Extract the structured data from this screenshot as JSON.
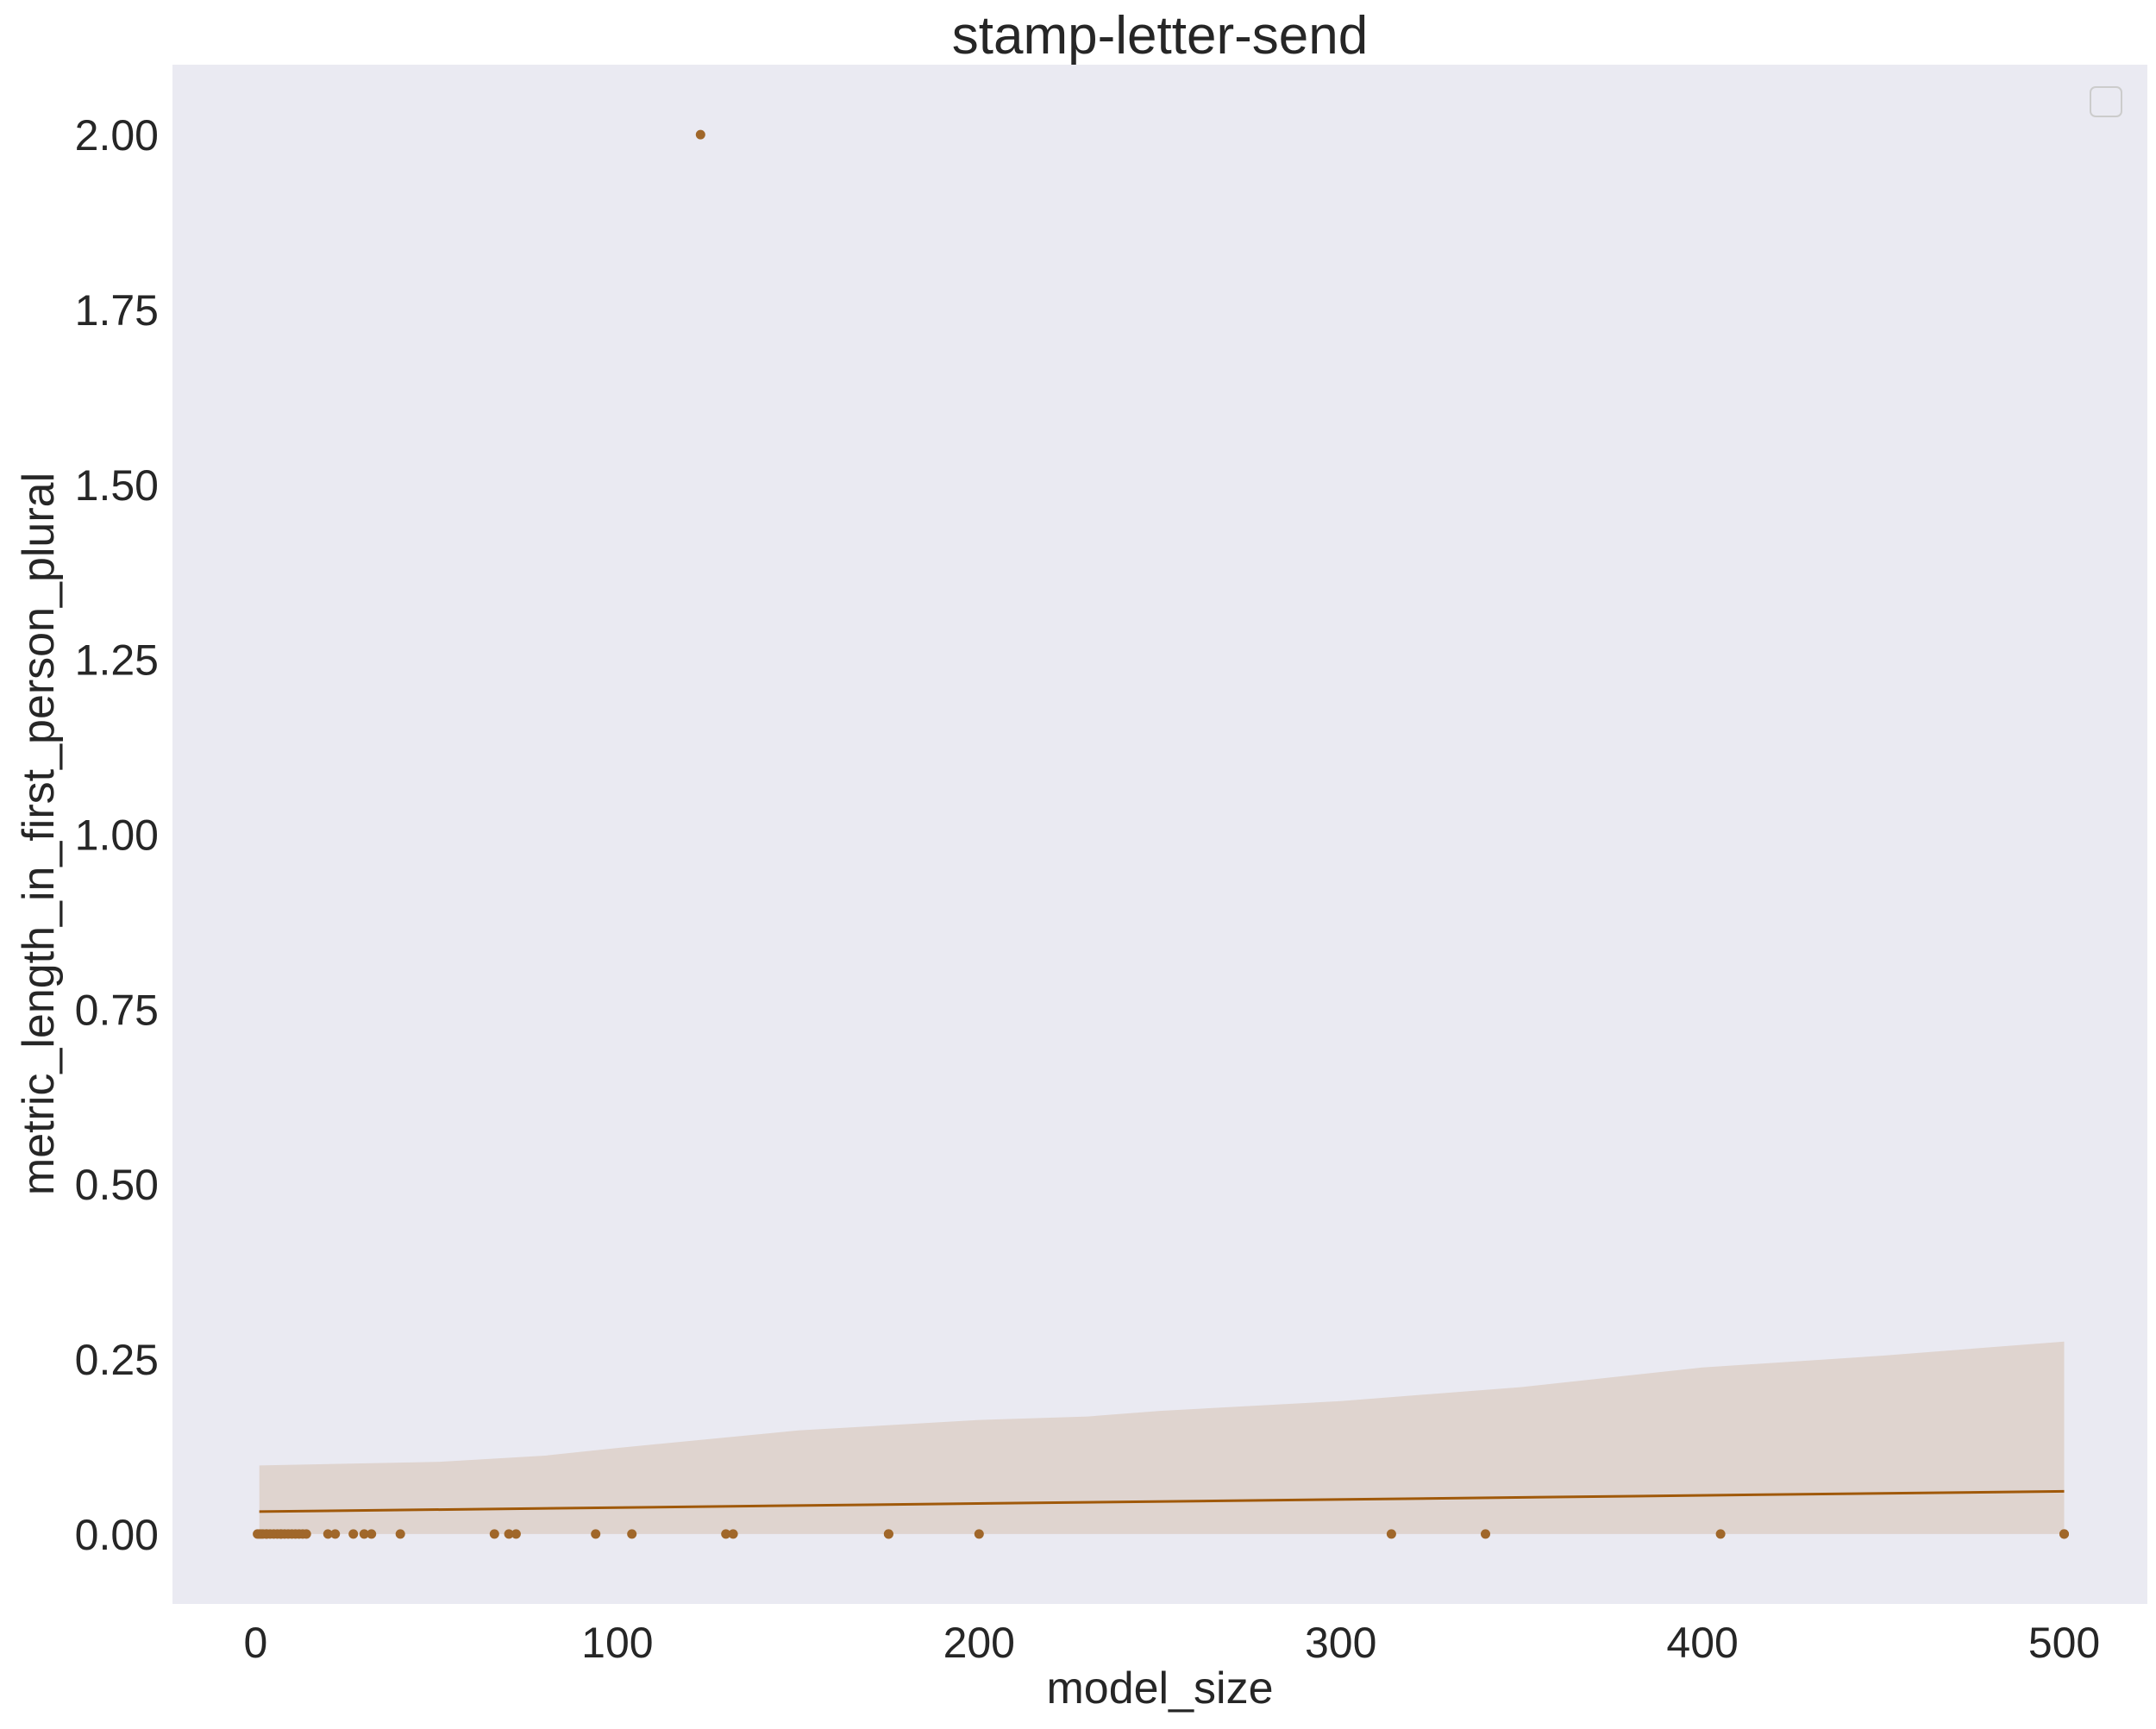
{
  "chart_data": {
    "type": "scatter",
    "title": "stamp-letter-send",
    "xlabel": "model_size",
    "ylabel": "metric_length_in_first_person_plural",
    "xlim": [
      -23,
      523
    ],
    "ylim": [
      -0.1,
      2.1
    ],
    "xticks": [
      0,
      100,
      200,
      300,
      400,
      500
    ],
    "xtick_labels": [
      "0",
      "100",
      "200",
      "300",
      "400",
      "500"
    ],
    "yticks": [
      0.0,
      0.25,
      0.5,
      0.75,
      1.0,
      1.25,
      1.5,
      1.75,
      2.0
    ],
    "ytick_labels": [
      "0.00",
      "0.25",
      "0.50",
      "0.75",
      "1.00",
      "1.25",
      "1.50",
      "1.75",
      "2.00"
    ],
    "grid": false,
    "legend": "top-right (empty)",
    "colors": {
      "background": "#eaeaf2",
      "points": "#a0672a",
      "line": "#a0590a",
      "band": "#dfd4cf"
    },
    "points": {
      "x": [
        0.5,
        1,
        1.5,
        2,
        3,
        3,
        4,
        5,
        6,
        7,
        7,
        8,
        9,
        10,
        11,
        12,
        13,
        14,
        20,
        22,
        27,
        30,
        32,
        40,
        66,
        70,
        72,
        94,
        104,
        123,
        130,
        132,
        175,
        175,
        200,
        314,
        340,
        405,
        500,
        500
      ],
      "y": [
        0,
        0,
        0,
        0,
        0,
        0,
        0,
        0,
        0,
        0,
        0,
        0,
        0,
        0,
        0,
        0,
        0,
        0,
        0,
        0,
        0,
        0,
        0,
        0,
        0,
        0,
        0,
        0,
        0,
        2.0,
        0,
        0,
        0,
        0,
        0,
        0,
        0,
        0,
        0,
        0
      ]
    },
    "regression": {
      "x": [
        1,
        500
      ],
      "y": [
        0.032,
        0.061
      ]
    },
    "confidence_band": {
      "x": [
        1,
        50,
        80,
        100,
        150,
        200,
        230,
        250,
        300,
        350,
        400,
        450,
        500
      ],
      "lower": [
        0,
        0,
        0,
        0,
        0,
        0,
        0,
        0,
        0,
        0,
        0,
        0,
        0
      ],
      "upper": [
        0.098,
        0.103,
        0.112,
        0.123,
        0.148,
        0.163,
        0.168,
        0.176,
        0.19,
        0.21,
        0.238,
        0.255,
        0.275
      ]
    }
  }
}
